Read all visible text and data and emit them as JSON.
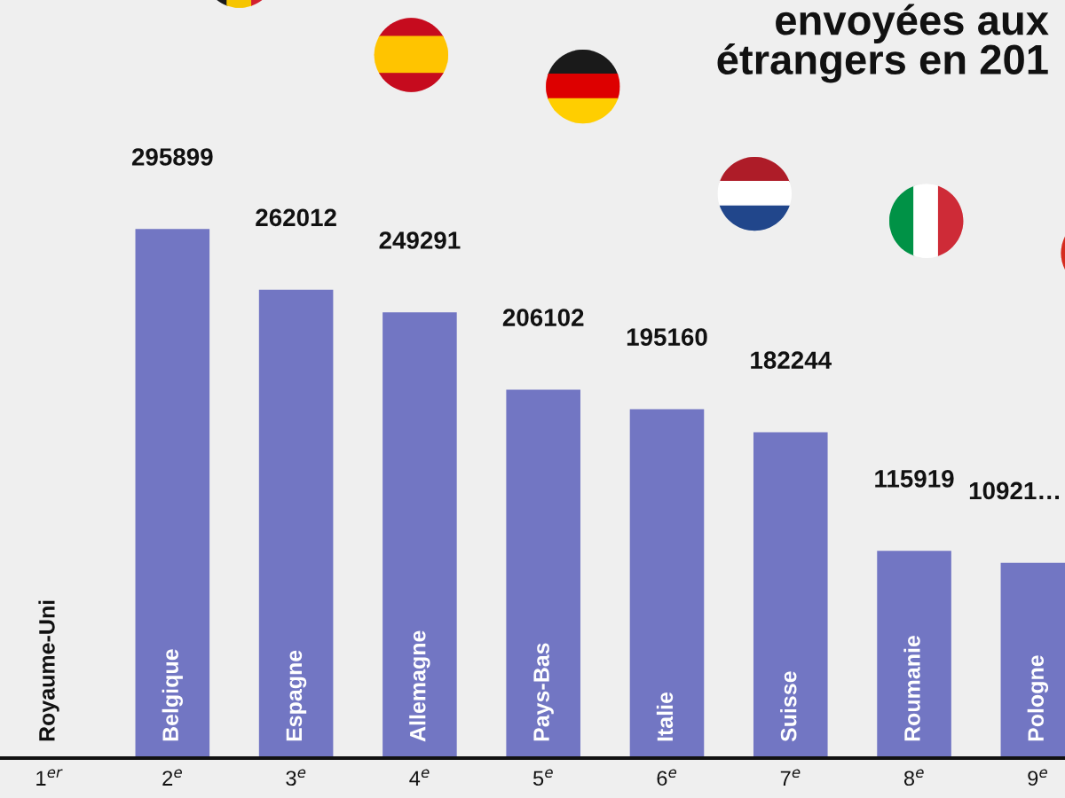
{
  "chart_data": {
    "type": "bar",
    "title": "envoyées aux\nétrangers en 201",
    "categories": [
      "Royaume-Uni",
      "Belgique",
      "Espagne",
      "Allemagne",
      "Pays-Bas",
      "Italie",
      "Suisse",
      "Roumanie",
      "Pologne"
    ],
    "values": [
      null,
      295899,
      262012,
      249291,
      206102,
      195160,
      182244,
      115919,
      109210
    ],
    "value_labels": [
      null,
      "295899",
      "262012",
      "249291",
      "206102",
      "195160",
      "182244",
      "115919",
      "10921…"
    ],
    "color": "#7276c3",
    "ylim": [
      0,
      424000
    ],
    "tick_labels": false,
    "legend": false,
    "annotations": [
      "1$^{er}$",
      "2$^{e}$",
      "3$^{e}$",
      "4$^{e}$",
      "5$^{e}$",
      "6$^{e}$",
      "7$^{e}$",
      "8$^{e}$",
      "9$^{e}$"
    ]
  }
}
